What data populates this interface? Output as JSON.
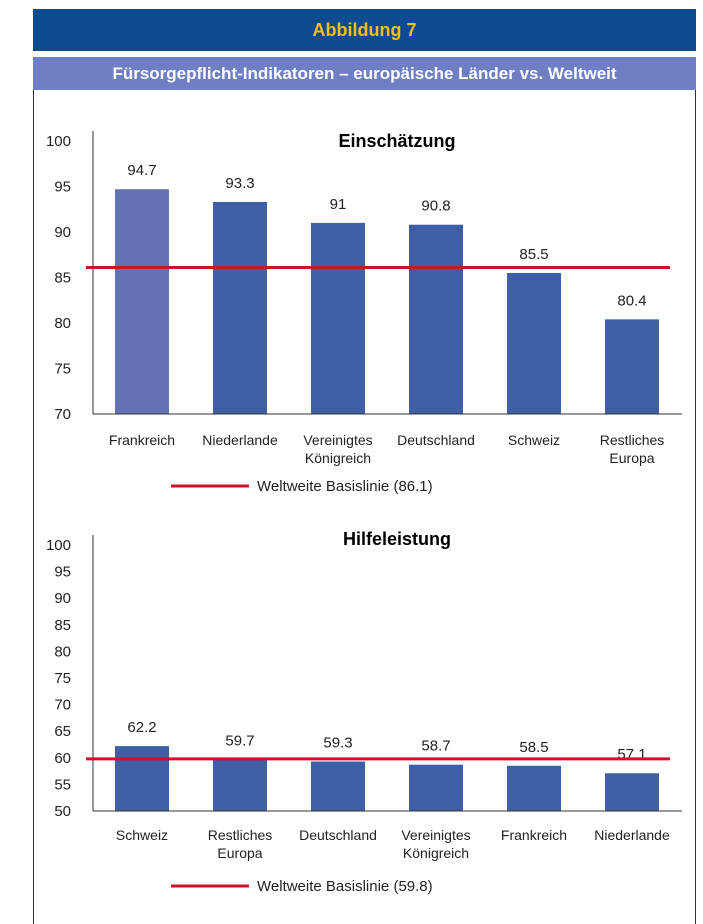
{
  "header": {
    "label": "Abbildung 7",
    "title": "Fürsorgepflicht-Indikatoren – europäische Länder vs. Weltweit"
  },
  "colors": {
    "header_bg": "#0d4a90",
    "header_text": "#f4c015",
    "subtitle_bg": "#6f7fc3",
    "bar": "#3e5fa6",
    "bar_highlight": "#6272b4",
    "baseline": "#d0112b"
  },
  "chart_data": [
    {
      "type": "bar",
      "title": "Einschätzung",
      "categories": [
        [
          "Frankreich"
        ],
        [
          "Niederlande"
        ],
        [
          "Vereinigtes",
          "Königreich"
        ],
        [
          "Deutschland"
        ],
        [
          "Schweiz"
        ],
        [
          "Restliches",
          "Europa"
        ]
      ],
      "values": [
        94.7,
        93.3,
        91,
        90.8,
        85.5,
        80.4
      ],
      "value_labels": [
        "94.7",
        "93.3",
        "91",
        "90.8",
        "85.5",
        "80.4"
      ],
      "highlight_index": 0,
      "ylim": [
        70,
        100
      ],
      "yticks": [
        70,
        75,
        80,
        85,
        90,
        95,
        100
      ],
      "baseline": 86.1,
      "legend": "Weltweite Basislinie (86.1)",
      "legend_position": "bottom-center",
      "grid": false
    },
    {
      "type": "bar",
      "title": "Hilfeleistung",
      "categories": [
        [
          "Schweiz"
        ],
        [
          "Restliches",
          "Europa"
        ],
        [
          "Deutschland"
        ],
        [
          "Vereinigtes",
          "Königreich"
        ],
        [
          "Frankreich"
        ],
        [
          "Niederlande"
        ]
      ],
      "values": [
        62.2,
        59.7,
        59.3,
        58.7,
        58.5,
        57.1
      ],
      "value_labels": [
        "62.2",
        "59.7",
        "59.3",
        "58.7",
        "58.5",
        "57.1"
      ],
      "highlight_index": -1,
      "ylim": [
        50,
        100
      ],
      "yticks": [
        50,
        55,
        60,
        65,
        70,
        75,
        80,
        85,
        90,
        95,
        100
      ],
      "baseline": 59.8,
      "legend": "Weltweite Basislinie (59.8)",
      "legend_position": "bottom-center",
      "grid": false
    }
  ]
}
